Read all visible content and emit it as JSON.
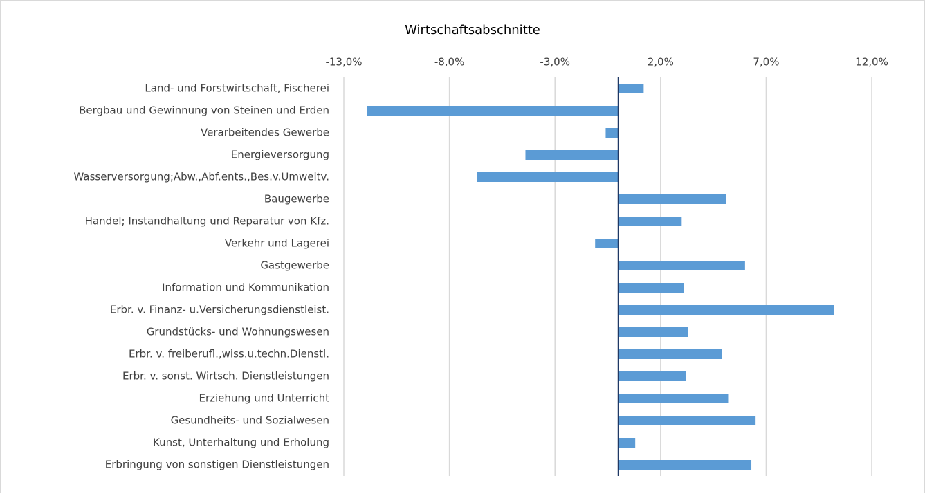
{
  "chart_data": {
    "type": "hbar",
    "title": "Wirtschaftsabschnitte",
    "categories": [
      "Land- und Forstwirtschaft, Fischerei",
      "Bergbau und Gewinnung von Steinen und Erden",
      "Verarbeitendes Gewerbe",
      "Energieversorgung ",
      "Wasserversorgung;Abw.,Abf.ents.,Bes.v.Umweltv.",
      "Baugewerbe",
      "Handel; Instandhaltung und Reparatur von Kfz.",
      "Verkehr und Lagerei",
      "Gastgewerbe",
      "Information und Kommunikation",
      "Erbr. v. Finanz- u.Versicherungsdienstleist.",
      "Grundstücks- und Wohnungswesen",
      "Erbr. v. freiberufl.,wiss.u.techn.Dienstl.",
      "Erbr. v. sonst. Wirtsch. Dienstleistungen",
      "Erziehung und Unterricht",
      "Gesundheits- und Sozialwesen",
      "Kunst, Unterhaltung und Erholung",
      "Erbringung von sonstigen Dienstleistungen"
    ],
    "values": [
      1.2,
      -11.9,
      -0.6,
      -4.4,
      -6.7,
      5.1,
      3.0,
      -1.1,
      6.0,
      3.1,
      10.2,
      3.3,
      4.9,
      3.2,
      5.2,
      6.5,
      0.8,
      6.3
    ],
    "color": "#5b9bd5",
    "xlim": [
      -13,
      12
    ],
    "xticks": [
      {
        "value": -13,
        "label": "-13,0%"
      },
      {
        "value": -8,
        "label": "-8,0%"
      },
      {
        "value": -3,
        "label": "-3,0%"
      },
      {
        "value": 2,
        "label": "2,0%"
      },
      {
        "value": 7,
        "label": "7,0%"
      },
      {
        "value": 12,
        "label": "12,0%"
      }
    ],
    "grid": true
  }
}
